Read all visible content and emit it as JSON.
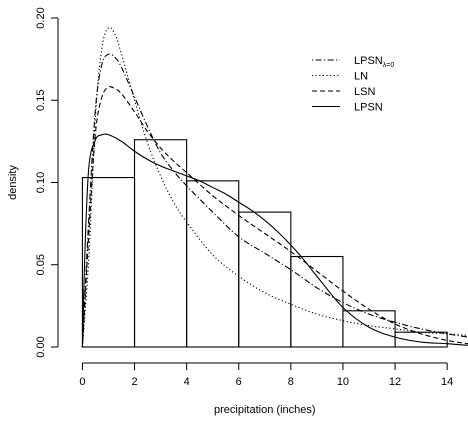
{
  "chart_data": {
    "type": "histogram",
    "title": "",
    "xlabel": "precipitation (inches)",
    "ylabel": "density",
    "xlim": [
      -0.4,
      14.8
    ],
    "ylim": [
      0,
      0.2
    ],
    "x_ticks": [
      "0",
      "2",
      "4",
      "6",
      "8",
      "10",
      "12",
      "14"
    ],
    "y_ticks": [
      "0.00",
      "0.05",
      "0.10",
      "0.15",
      "0.20"
    ],
    "x_tick_values": [
      0,
      2,
      4,
      6,
      8,
      10,
      12,
      14
    ],
    "y_tick_values": [
      0,
      0.05,
      0.1,
      0.15,
      0.2
    ],
    "grid": false,
    "legend_position": "top-right",
    "bins": [
      {
        "start": 0,
        "end": 2,
        "density": 0.103
      },
      {
        "start": 2,
        "end": 4,
        "density": 0.126
      },
      {
        "start": 4,
        "end": 6,
        "density": 0.101
      },
      {
        "start": 6,
        "end": 8,
        "density": 0.082
      },
      {
        "start": 8,
        "end": 10,
        "density": 0.055
      },
      {
        "start": 10,
        "end": 12,
        "density": 0.022
      },
      {
        "start": 12,
        "end": 14,
        "density": 0.009
      }
    ],
    "series": [
      {
        "name": "LPSN",
        "name_subscript": "λ=0",
        "line_style": "dotdash",
        "x": [
          0,
          0.25,
          0.5,
          0.75,
          1.0,
          1.25,
          1.5,
          2,
          2.5,
          3,
          3.5,
          4,
          5,
          6,
          7,
          8,
          9,
          10,
          11,
          12,
          13,
          14,
          14.8
        ],
        "y": [
          0,
          0.08,
          0.145,
          0.172,
          0.178,
          0.176,
          0.17,
          0.152,
          0.134,
          0.118,
          0.107,
          0.098,
          0.082,
          0.067,
          0.057,
          0.047,
          0.036,
          0.027,
          0.02,
          0.015,
          0.011,
          0.008,
          0.006
        ]
      },
      {
        "name": "LN",
        "line_style": "dotted",
        "x": [
          0,
          0.25,
          0.5,
          0.75,
          1.0,
          1.25,
          1.5,
          2,
          2.5,
          3,
          3.5,
          4,
          5,
          6,
          7,
          8,
          9,
          10,
          11,
          12,
          13,
          14,
          14.8
        ],
        "y": [
          0,
          0.055,
          0.14,
          0.182,
          0.194,
          0.19,
          0.178,
          0.15,
          0.124,
          0.104,
          0.088,
          0.076,
          0.056,
          0.043,
          0.033,
          0.026,
          0.02,
          0.016,
          0.013,
          0.011,
          0.009,
          0.008,
          0.007
        ]
      },
      {
        "name": "LSN",
        "line_style": "dashed",
        "x": [
          0,
          0.25,
          0.5,
          0.75,
          1.0,
          1.25,
          1.5,
          2,
          2.5,
          3,
          3.5,
          4,
          5,
          6,
          7,
          8,
          9,
          10,
          11,
          12,
          13,
          14,
          14.8
        ],
        "y": [
          0,
          0.07,
          0.13,
          0.152,
          0.158,
          0.157,
          0.154,
          0.143,
          0.131,
          0.121,
          0.113,
          0.106,
          0.092,
          0.08,
          0.069,
          0.058,
          0.046,
          0.034,
          0.023,
          0.014,
          0.008,
          0.004,
          0.002
        ]
      },
      {
        "name": "LPSN",
        "line_style": "solid",
        "x": [
          0,
          0.1,
          0.25,
          0.5,
          0.75,
          1.0,
          1.5,
          2,
          2.5,
          3,
          3.5,
          4,
          4.5,
          5,
          5.5,
          6,
          6.5,
          7,
          7.5,
          8,
          8.5,
          9,
          10,
          11,
          12,
          13,
          14,
          14.8
        ],
        "y": [
          0,
          0.06,
          0.11,
          0.126,
          0.129,
          0.129,
          0.125,
          0.119,
          0.114,
          0.11,
          0.107,
          0.104,
          0.101,
          0.097,
          0.093,
          0.088,
          0.083,
          0.077,
          0.07,
          0.062,
          0.053,
          0.043,
          0.024,
          0.012,
          0.006,
          0.003,
          0.002,
          0.001
        ]
      }
    ]
  }
}
